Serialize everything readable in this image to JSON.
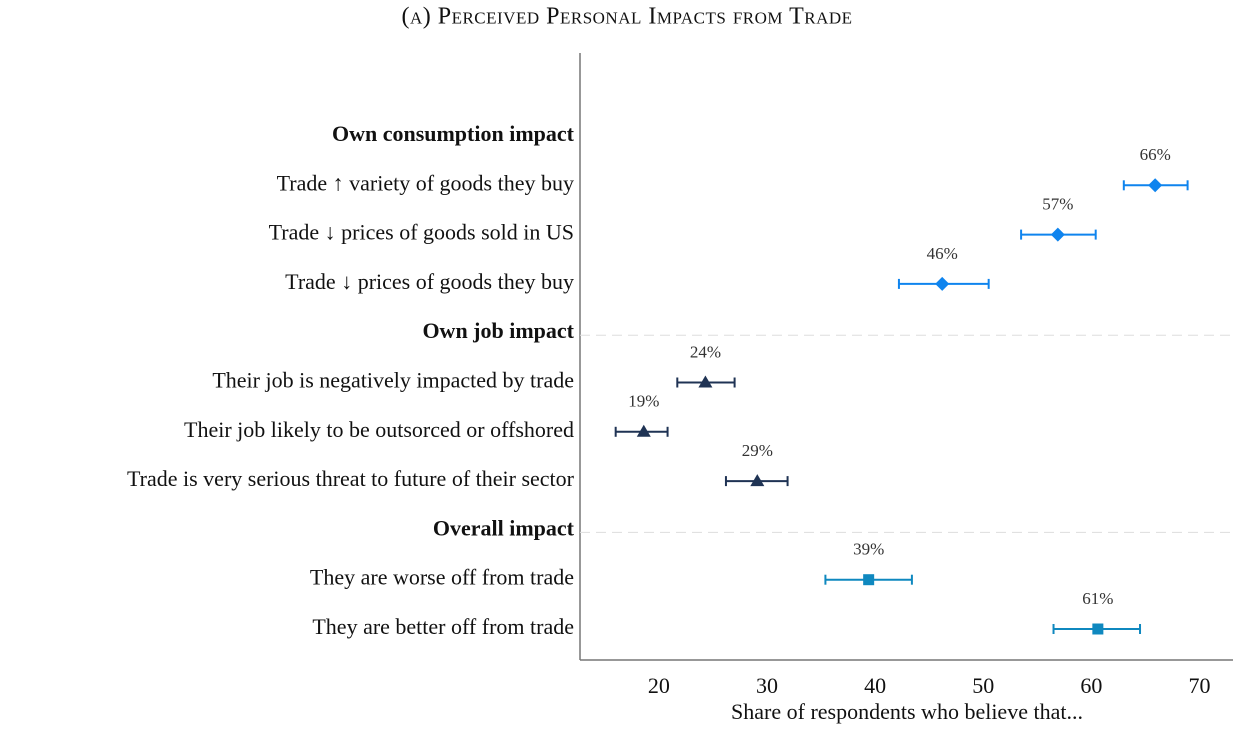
{
  "chart_data": {
    "type": "dot-errorbar",
    "title": "(a) Perceived Personal Impacts from Trade",
    "xlabel": "Share of respondents who believe that...",
    "xlim": [
      12.7,
      73.1
    ],
    "xticks": [
      20,
      30,
      40,
      50,
      60,
      70
    ],
    "groups": [
      {
        "name": "Own consumption impact",
        "marker": "diamond",
        "color": "#0f84ee",
        "items": [
          {
            "label": "Trade ↑ variety of goods they buy",
            "value": 65.9,
            "lower": 63.0,
            "upper": 68.9,
            "value_label": "66%"
          },
          {
            "label": "Trade ↓ prices of goods sold in US",
            "value": 56.9,
            "lower": 53.5,
            "upper": 60.4,
            "value_label": "57%"
          },
          {
            "label": "Trade ↓ prices of goods they buy",
            "value": 46.2,
            "lower": 42.2,
            "upper": 50.5,
            "value_label": "46%"
          }
        ]
      },
      {
        "name": "Own job impact",
        "marker": "triangle",
        "color": "#1f3354",
        "items": [
          {
            "label": "Their job is negatively impacted by trade",
            "value": 24.3,
            "lower": 21.7,
            "upper": 27.0,
            "value_label": "24%"
          },
          {
            "label": "Their job likely to be outsorced or offshored",
            "value": 18.6,
            "lower": 16.0,
            "upper": 20.8,
            "value_label": "19%"
          },
          {
            "label": "Trade is very serious threat to future of their sector",
            "value": 29.1,
            "lower": 26.2,
            "upper": 31.9,
            "value_label": "29%"
          }
        ]
      },
      {
        "name": "Overall impact",
        "marker": "square",
        "color": "#0f88bf",
        "items": [
          {
            "label": "They are worse off from trade",
            "value": 39.4,
            "lower": 35.4,
            "upper": 43.4,
            "value_label": "39%"
          },
          {
            "label": "They are better off from trade",
            "value": 60.6,
            "lower": 56.5,
            "upper": 64.5,
            "value_label": "61%"
          }
        ]
      }
    ]
  }
}
